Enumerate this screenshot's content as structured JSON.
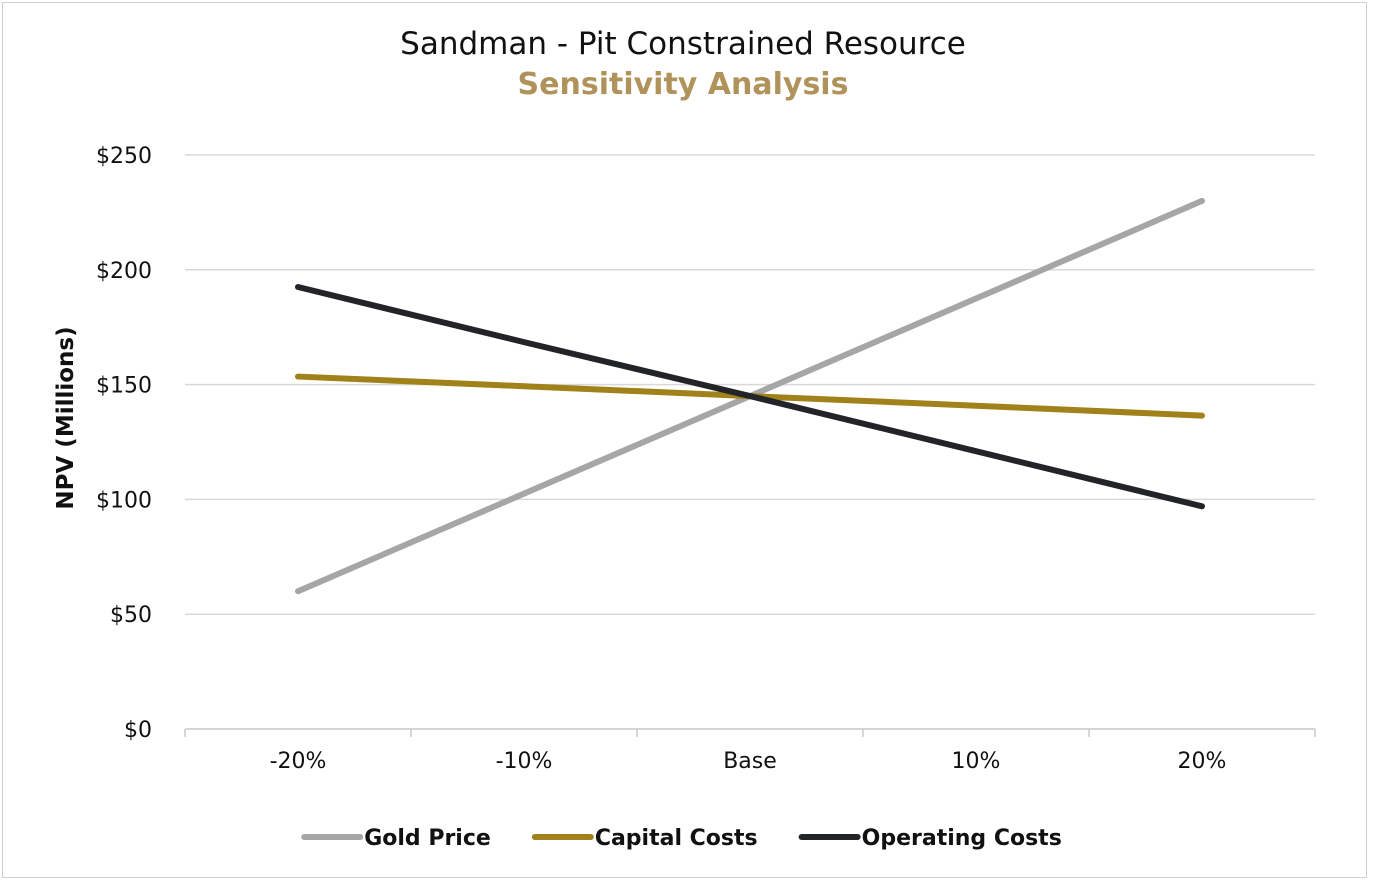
{
  "chart_data": {
    "type": "line",
    "title": "Sandman - Pit Constrained Resource",
    "subtitle": "Sensitivity Analysis",
    "xlabel": "",
    "ylabel": "NPV (Millions)",
    "categories": [
      "-20%",
      "-10%",
      "Base",
      "10%",
      "20%"
    ],
    "ylim": [
      0,
      250
    ],
    "yticks": [
      0,
      50,
      100,
      150,
      200,
      250
    ],
    "ytick_labels": [
      "$0",
      "$50",
      "$100",
      "$150",
      "$200",
      "$250"
    ],
    "grid": true,
    "legend_position": "bottom",
    "series": [
      {
        "name": "Gold Price",
        "color": "#a6a6a6",
        "values": [
          60,
          102.5,
          145,
          187.5,
          230
        ]
      },
      {
        "name": "Capital Costs",
        "color": "#a0811a",
        "values": [
          153.5,
          149.3,
          145,
          140.8,
          136.5
        ]
      },
      {
        "name": "Operating Costs",
        "color": "#222428",
        "values": [
          192.5,
          168.5,
          145,
          121,
          97
        ]
      }
    ]
  },
  "colors": {
    "subtitle": "#b0935a",
    "grid": "#d9d9d9",
    "axis": "#c8c8c8"
  }
}
